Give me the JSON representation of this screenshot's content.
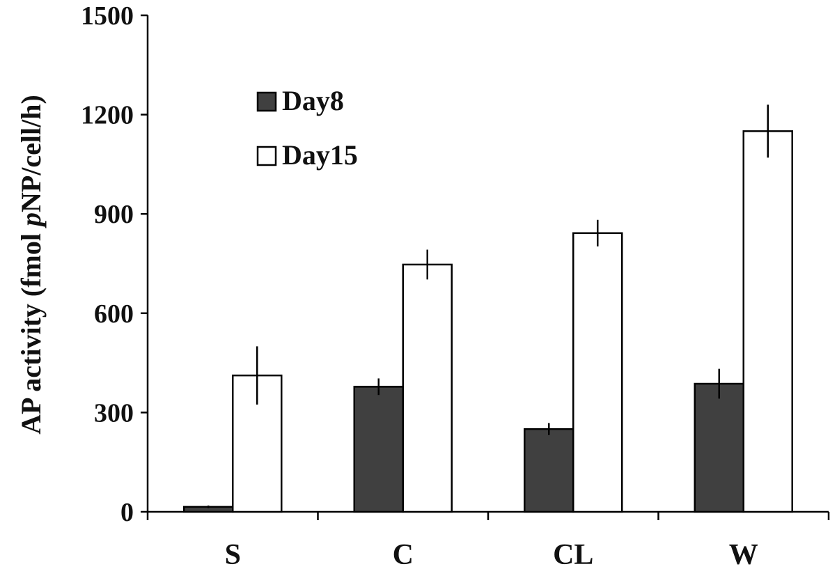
{
  "chart_data": {
    "type": "bar",
    "categories": [
      "S",
      "C",
      "CL",
      "W"
    ],
    "series": [
      {
        "name": "Day8",
        "values": [
          15,
          378,
          250,
          387
        ],
        "errors": [
          4,
          25,
          18,
          45
        ],
        "color": "#404040"
      },
      {
        "name": "Day15",
        "values": [
          412,
          747,
          842,
          1150
        ],
        "errors": [
          88,
          45,
          40,
          80
        ],
        "color": "#ffffff"
      }
    ],
    "ylabel": {
      "pre": "AP activity  (fmol ",
      "italic": "p",
      "post": "NP/cell/h)"
    },
    "ylim": [
      0,
      1500
    ],
    "yticks": [
      "0",
      "300",
      "600",
      "900",
      "1200",
      "1500"
    ],
    "grid": false,
    "legend_position": "top-left"
  }
}
